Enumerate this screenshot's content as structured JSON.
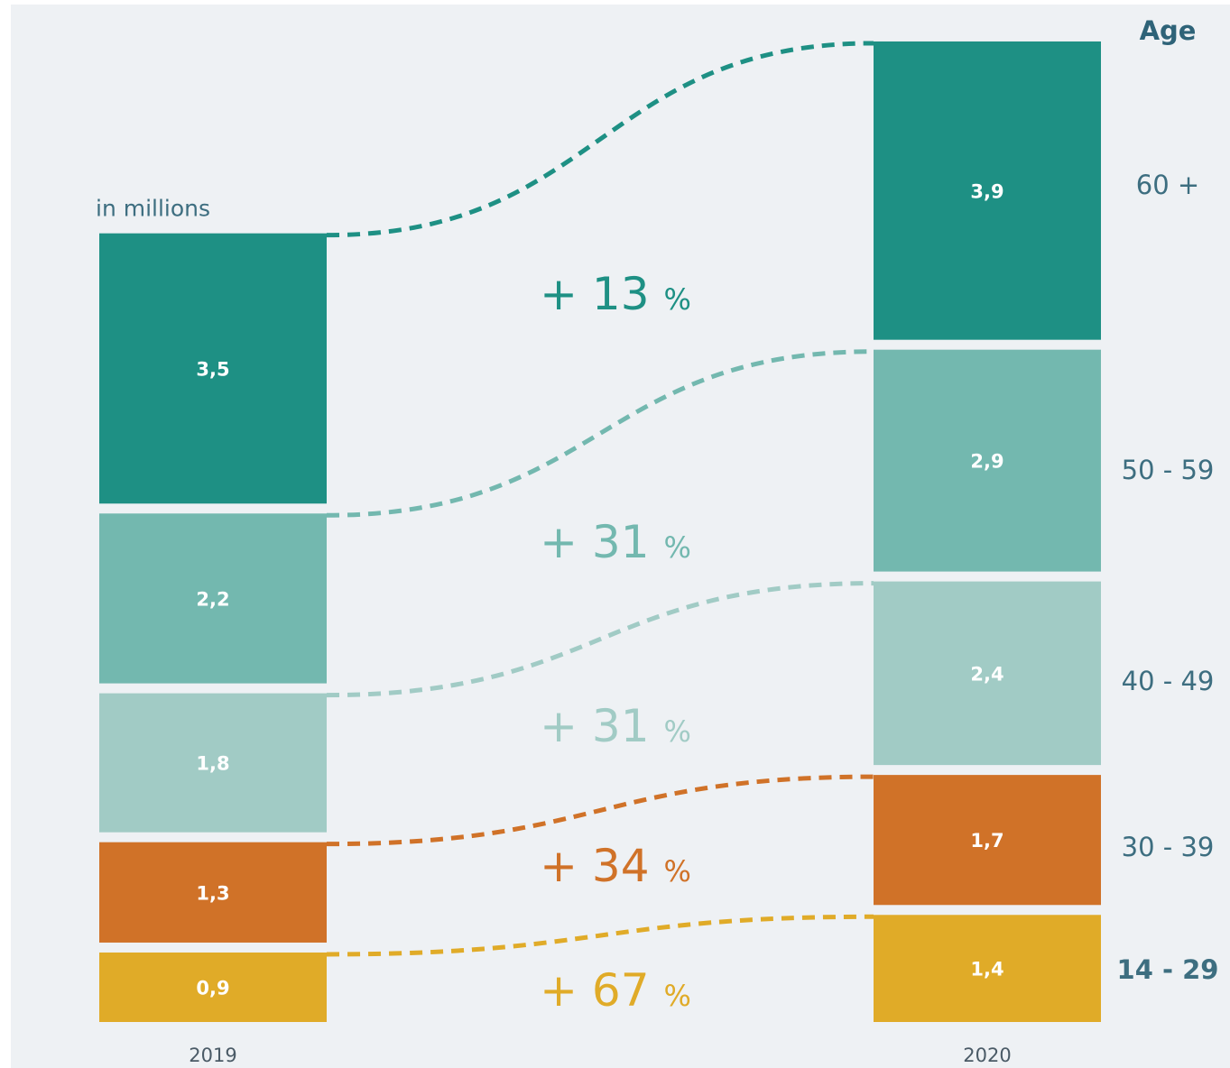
{
  "chart_data": {
    "type": "bar",
    "unit_label": "in millions",
    "categories": [
      "2019",
      "2020"
    ],
    "age_header": "Age",
    "series": [
      {
        "name": "60 +",
        "values": [
          3.5,
          3.9
        ],
        "labels": [
          "3,5",
          "3,9"
        ],
        "change": "+ 13",
        "color": "#1e9084",
        "label_color": "#3d6e80",
        "label_bold": false
      },
      {
        "name": "50 - 59",
        "values": [
          2.2,
          2.9
        ],
        "labels": [
          "2,2",
          "2,9"
        ],
        "change": "+ 31",
        "color": "#73b8af",
        "label_color": "#3d6e80",
        "label_bold": false
      },
      {
        "name": "40 - 49",
        "values": [
          1.8,
          2.4
        ],
        "labels": [
          "1,8",
          "2,4"
        ],
        "change": "+ 31",
        "color": "#a1cbc5",
        "label_color": "#3d6e80",
        "label_bold": false
      },
      {
        "name": "30 - 39",
        "values": [
          1.3,
          1.7
        ],
        "labels": [
          "1,3",
          "1,7"
        ],
        "change": "+ 34",
        "color": "#d07228",
        "label_color": "#3d6e80",
        "label_bold": false
      },
      {
        "name": "14 - 29",
        "values": [
          0.9,
          1.4
        ],
        "labels": [
          "0,9",
          "1,4"
        ],
        "change": "+ 67",
        "color": "#e0ab28",
        "label_color": "#0a6fb8",
        "label_bold": true
      }
    ],
    "percent_sign": "%"
  }
}
